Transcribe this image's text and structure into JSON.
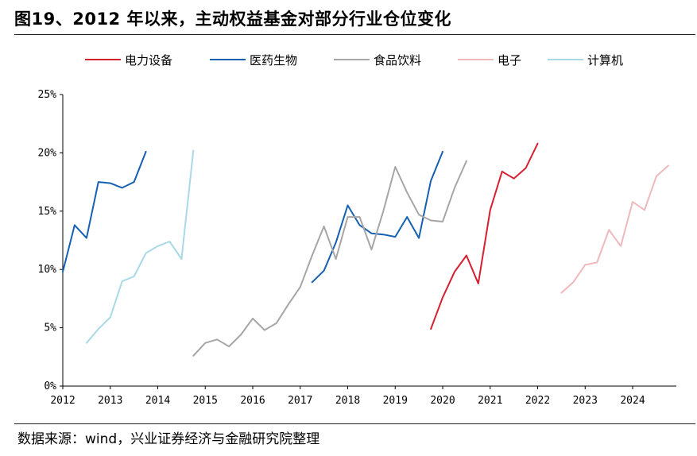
{
  "title": "图19、2012 年以来，主动权益基金对部分行业仓位变化",
  "source": "数据来源：wind，兴业证券经济与金融研究院整理",
  "chart_data": {
    "type": "line",
    "title": "",
    "xlabel": "",
    "ylabel": "",
    "ylim": [
      0,
      25
    ],
    "yticks": [
      0,
      5,
      10,
      15,
      20,
      25
    ],
    "ytick_labels": [
      "0%",
      "5%",
      "10%",
      "15%",
      "20%",
      "25%"
    ],
    "xlim": [
      2012.0,
      2024.92
    ],
    "xticks": [
      2012,
      2013,
      2014,
      2015,
      2016,
      2017,
      2018,
      2019,
      2020,
      2021,
      2022,
      2023,
      2024
    ],
    "xtick_labels": [
      "2012",
      "2013",
      "2014",
      "2015",
      "2016",
      "2017",
      "2018",
      "2019",
      "2020",
      "2021",
      "2022",
      "2023",
      "2024"
    ],
    "grid": false,
    "legend_position": "top",
    "series": [
      {
        "name": "电力设备",
        "color": "#d62030",
        "x": [
          2019.75,
          2020.0,
          2020.25,
          2020.5,
          2020.75,
          2021.0,
          2021.25,
          2021.5,
          2021.75,
          2022.0
        ],
        "y": [
          4.9,
          7.6,
          9.8,
          11.2,
          8.8,
          15.1,
          18.4,
          17.8,
          18.7,
          20.8
        ]
      },
      {
        "name": "医药生物",
        "color": "#1560b0",
        "x": [
          2012.0,
          2012.25,
          2012.5,
          2012.75,
          2013.0,
          2013.25,
          2013.5,
          2013.75,
          2017.25,
          2017.5,
          2017.75,
          2018.0,
          2018.25,
          2018.5,
          2018.75,
          2019.0,
          2019.25,
          2019.5,
          2019.75,
          2020.0
        ],
        "y": [
          9.8,
          13.8,
          12.7,
          17.5,
          17.4,
          17.0,
          17.5,
          20.1,
          8.9,
          9.9,
          12.3,
          15.5,
          13.8,
          13.1,
          13.0,
          12.8,
          14.5,
          12.7,
          17.6,
          20.1
        ],
        "segments": [
          [
            0,
            8
          ],
          [
            8,
            20
          ]
        ]
      },
      {
        "name": "食品饮料",
        "color": "#a6a6a6",
        "x": [
          2014.75,
          2015.0,
          2015.25,
          2015.5,
          2015.75,
          2016.0,
          2016.25,
          2016.5,
          2016.75,
          2017.0,
          2017.25,
          2017.5,
          2017.75,
          2018.0,
          2018.25,
          2018.5,
          2018.75,
          2019.0,
          2019.25,
          2019.5,
          2019.75,
          2020.0,
          2020.25,
          2020.5
        ],
        "y": [
          2.6,
          3.7,
          4.0,
          3.4,
          4.4,
          5.8,
          4.8,
          5.4,
          7.0,
          8.5,
          11.2,
          13.7,
          10.9,
          14.5,
          14.5,
          11.7,
          15.0,
          18.8,
          16.6,
          14.7,
          14.2,
          14.1,
          17.0,
          19.3
        ]
      },
      {
        "name": "电子",
        "color": "#efb8bc",
        "x": [
          2022.5,
          2022.75,
          2023.0,
          2023.25,
          2023.5,
          2023.75,
          2024.0,
          2024.25,
          2024.5,
          2024.75
        ],
        "y": [
          8.0,
          8.9,
          10.4,
          10.6,
          13.4,
          12.0,
          15.8,
          15.1,
          18.0,
          18.9
        ]
      },
      {
        "name": "计算机",
        "color": "#a9d9e6",
        "x": [
          2012.5,
          2012.75,
          2013.0,
          2013.25,
          2013.5,
          2013.75,
          2014.0,
          2014.25,
          2014.5,
          2014.75
        ],
        "y": [
          3.7,
          4.9,
          5.9,
          9.0,
          9.4,
          11.4,
          12.0,
          12.4,
          10.9,
          20.2
        ]
      }
    ]
  }
}
